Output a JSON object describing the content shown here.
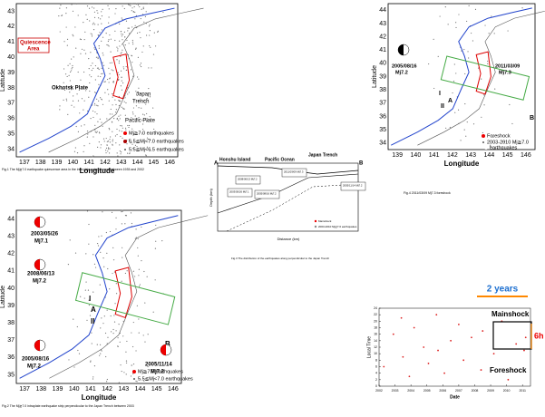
{
  "fig1": {
    "y_label": "Latitude",
    "x_label": "Longitude",
    "yticks": [
      34,
      35,
      36,
      37,
      38,
      39,
      40,
      41,
      42,
      43
    ],
    "xticks": [
      137,
      138,
      139,
      140,
      141,
      142,
      143,
      144,
      145,
      146
    ],
    "labels": [
      "Quiescence",
      "Area",
      "Okhotsk Plate",
      "Japan",
      "Trench",
      "Pacific Plate"
    ],
    "legend": [
      "Mj≧7.0 earthquakes",
      "6.5≦Mj<7.0 earthquakes",
      "5.5≦Mj<6.5 earthquakes"
    ],
    "caption": "Fig.1 The Mj≧7.0 earthquake quiescence area in the interplate seismic zone between 1935 and 2002"
  },
  "fig2": {
    "y_label": "Latitude",
    "x_label": "Longitude",
    "yticks": [
      35,
      36,
      37,
      38,
      39,
      40,
      41,
      42,
      43,
      44
    ],
    "xticks": [
      137,
      138,
      139,
      140,
      141,
      142,
      143,
      144,
      145,
      146
    ],
    "labels": [
      "2003/05/26",
      "Mj7.1",
      "2008/06/13",
      "Mj7.2",
      "2005/08/16",
      "Mj7.2",
      "2005/11/14",
      "Mj7.2",
      "I",
      "A",
      "II",
      "B"
    ],
    "legend": [
      "Mj≧7.0 earthquakes",
      "5.5≦Mj<7.0 earthquakes"
    ],
    "caption": "Fig.2 The Mj≧7.0 intraplate earthquake strip perpendicular to the Japan Trench between 2003"
  },
  "fig3": {
    "y_label": "Depth (km)",
    "x_label": "Distance (km)",
    "labels": [
      "Honshu Island",
      "Pacific Ocean",
      "Japan Trench",
      "A",
      "B"
    ],
    "boxes": [
      "2008/06/13 Mj7.2",
      "2003/05/26 Mj7.1",
      "2005/08/16 Mj7.2",
      "2011/03/09 Mj7.3",
      "2005/11/14 Mj7.2"
    ],
    "legend": [
      "Mainshock",
      "2003-2010 Mj≧7.0 earthquakes"
    ],
    "caption": "Fig.3 The distribution of the earthquakes along perpendicular to the Japan Trench"
  },
  "fig4": {
    "y_label": "Latitude",
    "x_label": "Longitude",
    "yticks": [
      34,
      35,
      36,
      37,
      38,
      39,
      40,
      41,
      42,
      43,
      44
    ],
    "xticks": [
      139,
      140,
      141,
      142,
      143,
      144,
      145,
      146
    ],
    "labels": [
      "2005/08/16",
      "Mj7.2",
      "2011/03/09",
      "Mj7.3",
      "I",
      "II",
      "A",
      "B"
    ],
    "legend": [
      "Foreshock",
      "2003-2010 Mj≧7.0",
      "earthquakes"
    ],
    "caption": "Fig.4 2011/03/09 Mj7.3 foreshock"
  },
  "fig5": {
    "type": "scatter",
    "y_label": "Local Time",
    "x_label": "Date",
    "ylim": [
      0,
      24
    ],
    "yticks": [
      0,
      2,
      4,
      6,
      8,
      10,
      12,
      14,
      16,
      18,
      20,
      22,
      24
    ],
    "xlim": [
      2002,
      2011.5
    ],
    "xticks": [
      2002,
      2003,
      2004,
      2005,
      2006,
      2007,
      2008,
      2009,
      2010,
      2011
    ],
    "x": [
      2002.3,
      2002.9,
      2003.4,
      2003.5,
      2003.9,
      2004.2,
      2004.8,
      2005.1,
      2005.6,
      2005.7,
      2006.1,
      2006.5,
      2007.0,
      2007.3,
      2007.8,
      2008.4,
      2008.5,
      2009.2,
      2009.7,
      2010.1,
      2010.6,
      2011.1,
      2011.2
    ],
    "y": [
      6,
      16,
      21,
      9,
      3,
      18,
      12,
      7,
      22,
      11,
      4,
      14,
      19,
      8,
      15,
      5,
      17,
      10,
      20,
      2,
      13,
      11,
      15
    ],
    "annotations": [
      "2 years",
      "Mainshock",
      "6h",
      "Foreshock"
    ]
  }
}
